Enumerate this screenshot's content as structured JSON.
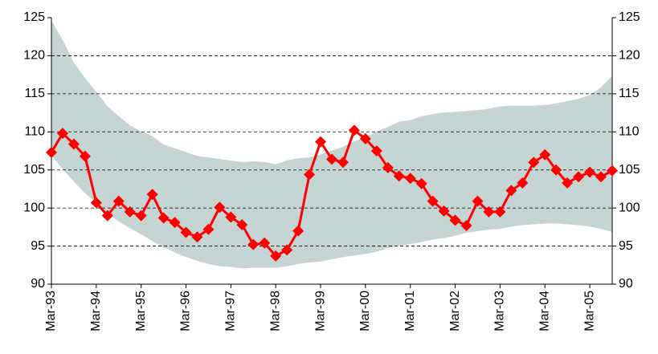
{
  "chart_data": {
    "type": "line",
    "categories": [
      "Mar-93",
      null,
      null,
      null,
      "Mar-94",
      null,
      null,
      null,
      "Mar-95",
      null,
      null,
      null,
      "Mar-96",
      null,
      null,
      null,
      "Mar-97",
      null,
      null,
      null,
      "Mar-98",
      null,
      null,
      null,
      "Mar-99",
      null,
      null,
      null,
      "Mar-00",
      null,
      null,
      null,
      "Mar-01",
      null,
      null,
      null,
      "Mar-02",
      null,
      null,
      null,
      "Mar-03",
      null,
      null,
      null,
      "Mar-04",
      null,
      null,
      null,
      "Mar-05",
      null,
      null
    ],
    "series": [
      {
        "color": "#ff0000",
        "values": [
          107.3,
          109.8,
          108.4,
          106.8,
          100.7,
          99.0,
          100.9,
          99.5,
          99.0,
          101.8,
          98.7,
          98.1,
          96.8,
          96.2,
          97.2,
          100.1,
          98.8,
          97.8,
          95.2,
          95.4,
          93.7,
          94.5,
          97.0,
          104.4,
          108.7,
          106.4,
          106.0,
          110.2,
          109.1,
          107.5,
          105.3,
          104.2,
          103.9,
          103.2,
          100.9,
          99.6,
          98.4,
          97.7,
          100.9,
          99.5,
          99.5,
          102.3,
          103.3,
          106.0,
          107.0,
          105.0,
          103.3,
          104.1,
          104.7,
          104.1,
          104.9
        ]
      }
    ],
    "band": {
      "color": "#c4d5d3",
      "upper": [
        124.5,
        122.0,
        119.0,
        117.0,
        115.2,
        113.3,
        112.0,
        110.8,
        110.0,
        109.4,
        108.3,
        107.8,
        107.3,
        106.8,
        106.6,
        106.4,
        106.2,
        106.0,
        106.1,
        106.0,
        105.7,
        106.2,
        106.5,
        106.6,
        107.0,
        107.5,
        108.0,
        108.7,
        109.3,
        110.0,
        110.6,
        111.3,
        111.5,
        112.0,
        112.3,
        112.5,
        112.6,
        112.7,
        112.8,
        113.0,
        113.3,
        113.4,
        113.4,
        113.4,
        113.5,
        113.7,
        114.0,
        114.3,
        114.8,
        115.8,
        117.3
      ],
      "lower": [
        107.0,
        105.2,
        103.5,
        102.0,
        100.7,
        99.3,
        98.3,
        97.4,
        96.6,
        95.7,
        94.9,
        94.2,
        93.6,
        93.1,
        92.7,
        92.4,
        92.3,
        92.1,
        92.2,
        92.2,
        92.2,
        92.4,
        92.7,
        92.9,
        93.0,
        93.3,
        93.6,
        93.8,
        94.0,
        94.3,
        94.8,
        95.1,
        95.3,
        95.6,
        95.9,
        96.1,
        96.4,
        96.8,
        97.0,
        97.2,
        97.3,
        97.6,
        97.8,
        97.9,
        98.0,
        98.0,
        97.9,
        97.8,
        97.6,
        97.3,
        96.9
      ]
    },
    "ylim": [
      90,
      125
    ],
    "yticks": [
      90,
      95,
      100,
      105,
      110,
      115,
      120,
      125
    ],
    "y2lim": [
      90,
      125
    ],
    "y2ticks": [
      90,
      95,
      100,
      105,
      110,
      115,
      120,
      125
    ],
    "grid": true
  }
}
